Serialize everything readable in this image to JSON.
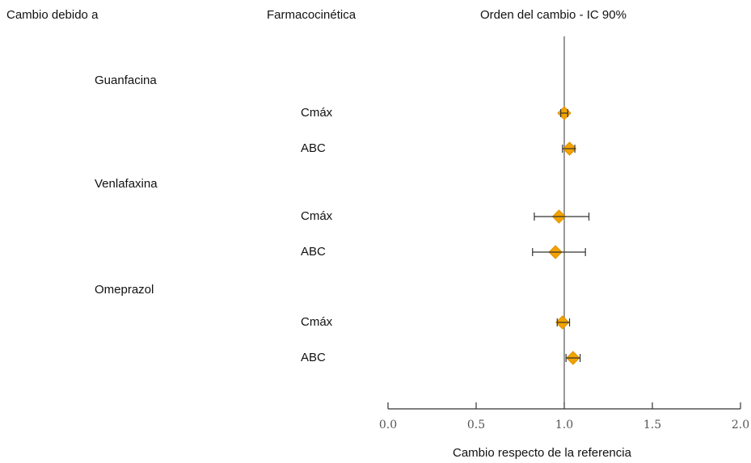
{
  "headers": {
    "col1": "Cambio debido a",
    "col2": "Farmacocinética",
    "col3": "Orden del cambio - IC 90%"
  },
  "colors": {
    "marker": "#F2A300",
    "axis": "#333333",
    "refline": "#555555"
  },
  "chart_data": {
    "type": "forest",
    "xlabel": "Cambio respecto de la referencia",
    "xlim": [
      0.0,
      2.0
    ],
    "xticks": [
      "0.0",
      "0.5",
      "1.0",
      "1.5",
      "2.0"
    ],
    "reference_line": 1.0,
    "groups": [
      {
        "name": "Guanfacina",
        "rows": [
          {
            "label": "Cmáx",
            "estimate": 1.0,
            "ci": [
              0.98,
              1.02
            ]
          },
          {
            "label": "ABC",
            "estimate": 1.03,
            "ci": [
              0.99,
              1.06
            ]
          }
        ]
      },
      {
        "name": "Venlafaxina",
        "rows": [
          {
            "label": "Cmáx",
            "estimate": 0.97,
            "ci": [
              0.83,
              1.14
            ]
          },
          {
            "label": "ABC",
            "estimate": 0.95,
            "ci": [
              0.82,
              1.12
            ]
          }
        ]
      },
      {
        "name": "Omeprazol",
        "rows": [
          {
            "label": "Cmáx",
            "estimate": 0.99,
            "ci": [
              0.96,
              1.03
            ]
          },
          {
            "label": "ABC",
            "estimate": 1.05,
            "ci": [
              1.01,
              1.09
            ]
          }
        ]
      }
    ]
  }
}
